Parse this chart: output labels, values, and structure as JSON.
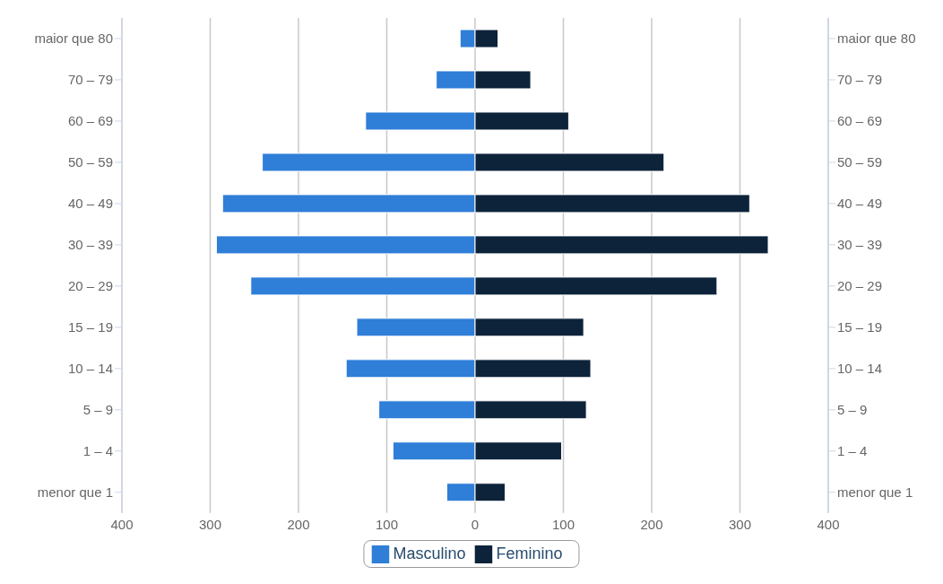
{
  "chart_data": {
    "type": "bar",
    "orientation": "horizontal",
    "stacked": true,
    "categories": [
      "maior que 80",
      "70 – 79",
      "60 – 69",
      "50 – 59",
      "40 – 49",
      "30 – 39",
      "20 – 29",
      "15 – 19",
      "10 – 14",
      "5 – 9",
      "1 – 4",
      "menor que 1"
    ],
    "y2_categories": [
      "maior que 80",
      "70 – 79",
      "60 – 69",
      "50 – 59",
      "40 – 49",
      "30 – 39",
      "20 – 29",
      "15 – 19",
      "10 – 14",
      "5 – 9",
      "1 – 4",
      "menor que 1"
    ],
    "series": [
      {
        "name": "Masculino",
        "color": "#2f7ed8",
        "values": [
          -17,
          -44,
          -124,
          -241,
          -286,
          -293,
          -254,
          -134,
          -146,
          -109,
          -93,
          -32
        ]
      },
      {
        "name": "Feminino",
        "color": "#0d233a",
        "values": [
          26,
          63,
          106,
          214,
          311,
          332,
          274,
          123,
          131,
          126,
          98,
          34
        ]
      }
    ],
    "xlim": [
      -400,
      400
    ],
    "xticks": [
      {
        "value": -400,
        "label": "400"
      },
      {
        "value": -300,
        "label": "300"
      },
      {
        "value": -200,
        "label": "200"
      },
      {
        "value": -100,
        "label": "100"
      },
      0,
      100,
      200,
      300,
      400
    ],
    "grid": "x",
    "legend": "bottom"
  }
}
